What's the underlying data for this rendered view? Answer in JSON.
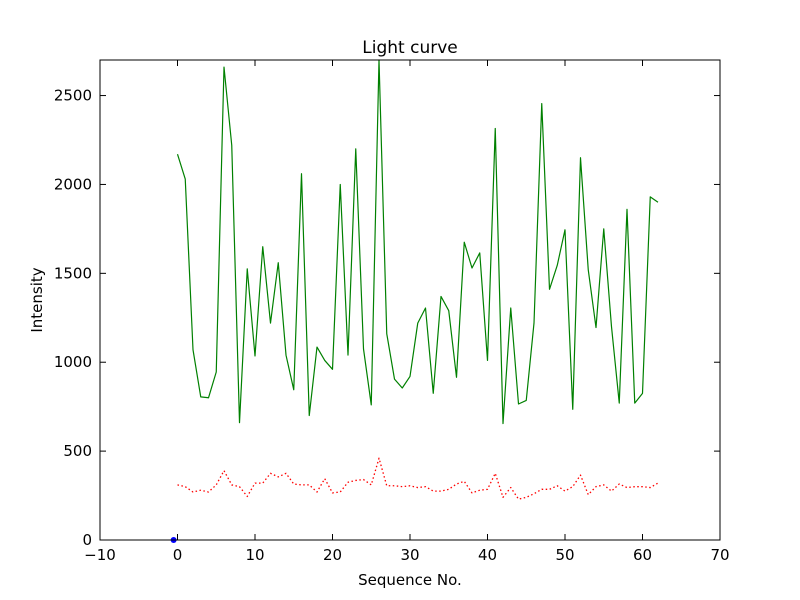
{
  "chart_data": {
    "type": "line",
    "title": "Light curve",
    "xlabel": "Sequence No.",
    "ylabel": "Intensity",
    "xlim": [
      -10,
      70
    ],
    "ylim": [
      0,
      2700
    ],
    "grid": false,
    "x_ticks": [
      -10,
      0,
      10,
      20,
      30,
      40,
      50,
      60,
      70
    ],
    "y_ticks": [
      0,
      500,
      1000,
      1500,
      2000,
      2500
    ],
    "x": [
      0,
      1,
      2,
      3,
      4,
      5,
      6,
      7,
      8,
      9,
      10,
      11,
      12,
      13,
      14,
      15,
      16,
      17,
      18,
      19,
      20,
      21,
      22,
      23,
      24,
      25,
      26,
      27,
      28,
      29,
      30,
      31,
      32,
      33,
      34,
      35,
      36,
      37,
      38,
      39,
      40,
      41,
      42,
      43,
      44,
      45,
      46,
      47,
      48,
      49,
      50,
      51,
      52,
      53,
      54,
      55,
      56,
      57,
      58,
      59,
      60,
      61,
      62
    ],
    "series": [
      {
        "color": "#008000",
        "style": "solid",
        "values": [
          2170,
          2030,
          1070,
          805,
          800,
          945,
          2660,
          2220,
          660,
          1525,
          1035,
          1650,
          1220,
          1560,
          1040,
          845,
          2060,
          700,
          1085,
          1010,
          960,
          2000,
          1040,
          2200,
          1075,
          760,
          2700,
          1160,
          905,
          855,
          920,
          1220,
          1305,
          825,
          1370,
          1290,
          915,
          1675,
          1530,
          1615,
          1010,
          2315,
          655,
          1305,
          765,
          785,
          1220,
          2455,
          1410,
          1545,
          1745,
          735,
          2150,
          1520,
          1195,
          1750,
          1200,
          770,
          1860,
          770,
          825,
          1930,
          1900
        ]
      },
      {
        "color": "#ff0000",
        "style": "dotted",
        "values": [
          310,
          300,
          270,
          280,
          270,
          310,
          390,
          310,
          300,
          245,
          320,
          320,
          375,
          355,
          375,
          315,
          310,
          310,
          270,
          345,
          265,
          270,
          325,
          335,
          340,
          310,
          460,
          305,
          305,
          300,
          305,
          295,
          300,
          275,
          275,
          285,
          315,
          330,
          265,
          280,
          285,
          375,
          240,
          295,
          230,
          240,
          260,
          285,
          285,
          305,
          275,
          300,
          365,
          255,
          300,
          310,
          275,
          315,
          295,
          300,
          300,
          295,
          320
        ]
      },
      {
        "color": "#0000ff",
        "style": "marker",
        "values": [
          0
        ],
        "x": [
          -0.5
        ]
      }
    ]
  }
}
